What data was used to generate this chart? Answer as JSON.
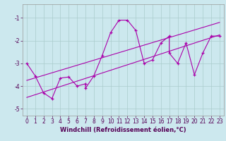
{
  "xlabel": "Windchill (Refroidissement éolien,°C)",
  "bg_color": "#cce8ee",
  "line_color": "#aa00aa",
  "grid_color": "#aacccc",
  "x_data": [
    0,
    1,
    2,
    3,
    4,
    5,
    6,
    7,
    7,
    8,
    9,
    10,
    11,
    12,
    13,
    14,
    15,
    16,
    17,
    17,
    18,
    19,
    20,
    21,
    22,
    23
  ],
  "y_data": [
    -3.0,
    -3.55,
    -4.3,
    -4.55,
    -3.65,
    -3.6,
    -4.0,
    -3.9,
    -4.1,
    -3.55,
    -2.65,
    -1.65,
    -1.1,
    -1.1,
    -1.55,
    -3.0,
    -2.85,
    -2.1,
    -1.8,
    -2.55,
    -3.0,
    -2.1,
    -3.5,
    -2.55,
    -1.8,
    -1.8
  ],
  "reg_line1": {
    "x": [
      0,
      23
    ],
    "y": [
      -4.5,
      -1.75
    ]
  },
  "reg_line2": {
    "x": [
      0,
      23
    ],
    "y": [
      -3.75,
      -1.2
    ]
  },
  "xlim": [
    -0.5,
    23.5
  ],
  "ylim": [
    -5.3,
    -0.4
  ],
  "xticks": [
    0,
    1,
    2,
    3,
    4,
    5,
    6,
    7,
    8,
    9,
    10,
    11,
    12,
    13,
    14,
    15,
    16,
    17,
    18,
    19,
    20,
    21,
    22,
    23
  ],
  "yticks": [
    -5,
    -4,
    -3,
    -2,
    -1
  ],
  "tick_color": "#550055",
  "label_fontsize": 5.5,
  "xlabel_fontsize": 6.0
}
